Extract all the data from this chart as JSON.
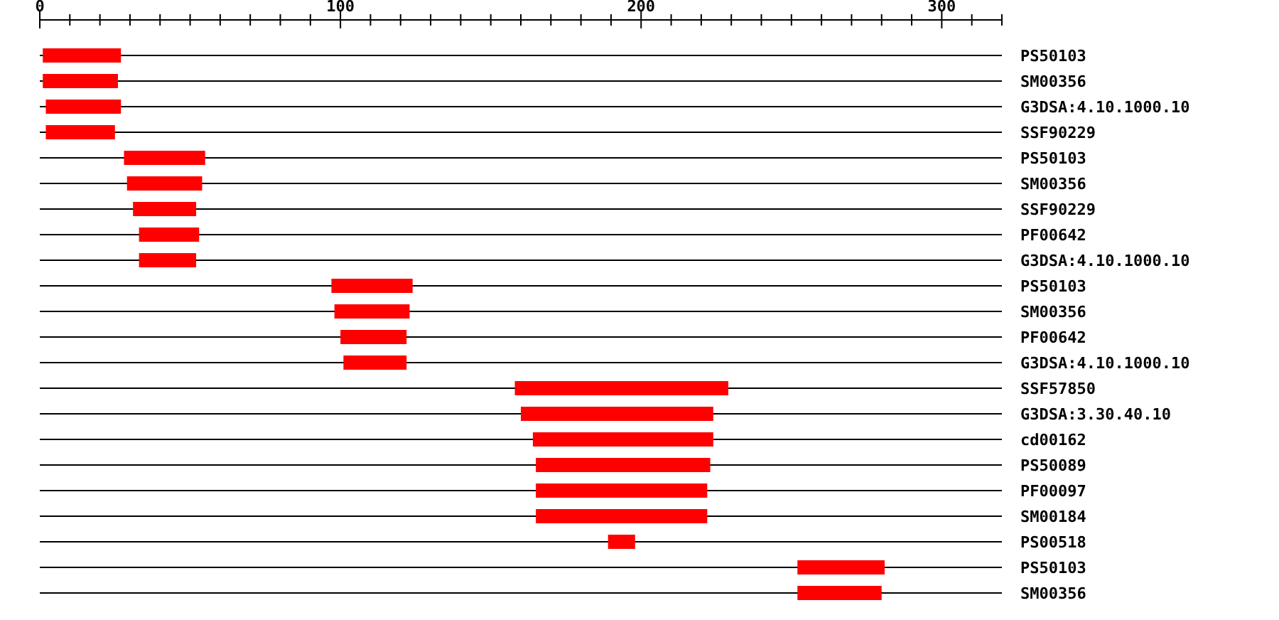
{
  "chart_data": {
    "type": "bar",
    "orientation": "horizontal",
    "categories": [
      "PS50103",
      "SM00356",
      "G3DSA:4.10.1000.10",
      "SSF90229",
      "PS50103",
      "SM00356",
      "SSF90229",
      "PF00642",
      "G3DSA:4.10.1000.10",
      "PS50103",
      "SM00356",
      "PF00642",
      "G3DSA:4.10.1000.10",
      "SSF57850",
      "G3DSA:3.30.40.10",
      "cd00162",
      "PS50089",
      "PF00097",
      "SM00184",
      "PS00518",
      "PS50103",
      "SM00356"
    ],
    "base": [
      1,
      1,
      2,
      2,
      28,
      29,
      31,
      33,
      33,
      97,
      98,
      100,
      101,
      158,
      160,
      164,
      165,
      165,
      165,
      189,
      252,
      252
    ],
    "values": [
      26,
      25,
      25,
      23,
      27,
      25,
      21,
      20,
      19,
      27,
      25,
      22,
      21,
      71,
      64,
      60,
      58,
      57,
      57,
      9,
      29,
      28
    ],
    "color": "#ff0000",
    "xlim": [
      0,
      320
    ],
    "xticks": [
      0,
      {
        "value": 10,
        "label": null
      },
      {
        "value": 20,
        "label": null
      },
      {
        "value": 30,
        "label": null
      },
      {
        "value": 40,
        "label": null
      },
      {
        "value": 50,
        "label": null
      },
      {
        "value": 60,
        "label": null
      },
      {
        "value": 70,
        "label": null
      },
      {
        "value": 80,
        "label": null
      },
      {
        "value": 90,
        "label": null
      },
      100,
      {
        "value": 110,
        "label": null
      },
      {
        "value": 120,
        "label": null
      },
      {
        "value": 130,
        "label": null
      },
      {
        "value": 140,
        "label": null
      },
      {
        "value": 150,
        "label": null
      },
      {
        "value": 160,
        "label": null
      },
      {
        "value": 170,
        "label": null
      },
      {
        "value": 180,
        "label": null
      },
      {
        "value": 190,
        "label": null
      },
      200,
      {
        "value": 210,
        "label": null
      },
      {
        "value": 220,
        "label": null
      },
      {
        "value": 230,
        "label": null
      },
      {
        "value": 240,
        "label": null
      },
      {
        "value": 250,
        "label": null
      },
      {
        "value": 260,
        "label": null
      },
      {
        "value": 270,
        "label": null
      },
      {
        "value": 280,
        "label": null
      },
      {
        "value": 290,
        "label": null
      },
      300,
      {
        "value": 310,
        "label": null
      },
      {
        "value": 320,
        "label": null
      }
    ],
    "grid": "y"
  }
}
